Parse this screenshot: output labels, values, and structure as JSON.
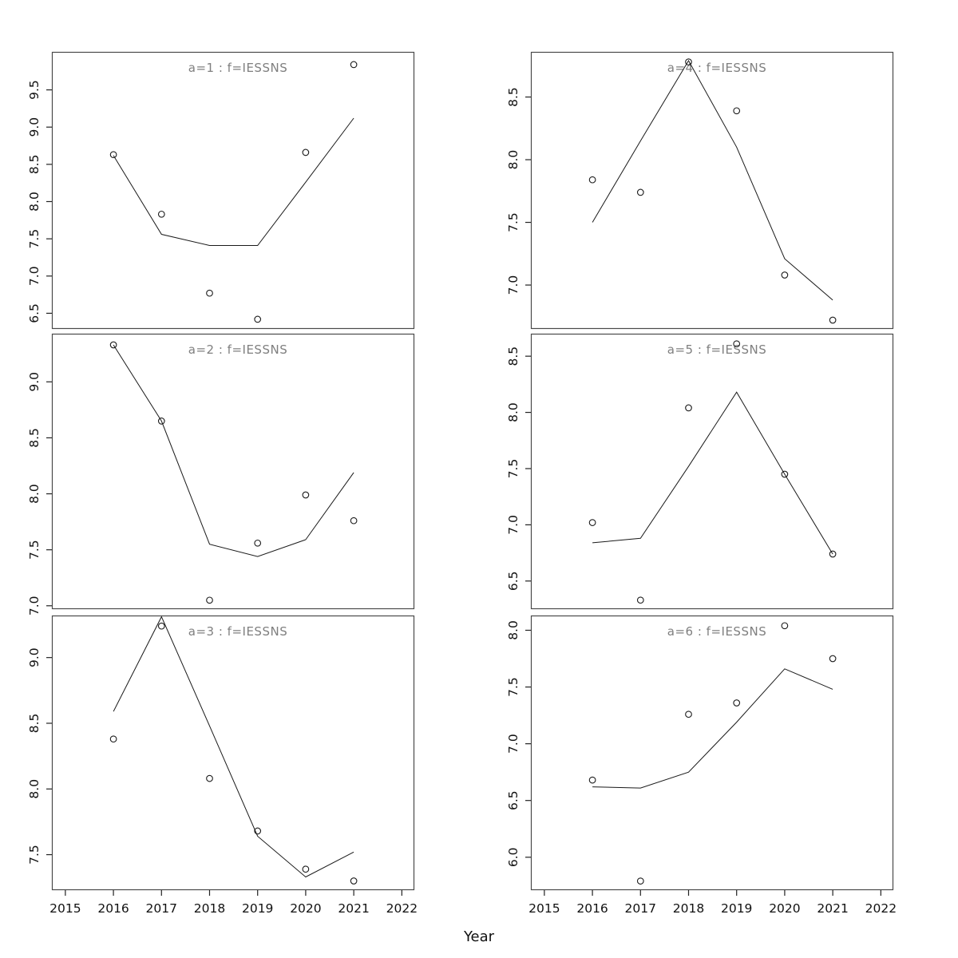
{
  "figure": {
    "background": "#ffffff",
    "xlabel": "Year"
  },
  "colors": {
    "panel_border": "#4a4a4a",
    "tick": "#222222",
    "tick_text": "#111111",
    "title_text": "#7f7f7f",
    "series_line": "#1a1a1a",
    "point_stroke": "#1a1a1a"
  },
  "chart_data": {
    "type": "scatter",
    "note": "6 panels, each: open-circle observations plus fitted line over years",
    "xlabel": "Year",
    "x": [
      2016,
      2017,
      2018,
      2019,
      2020,
      2021
    ],
    "xticks": [
      2015,
      2016,
      2017,
      2018,
      2019,
      2020,
      2021,
      2022
    ],
    "xlim": [
      2014.72,
      2022.26
    ],
    "grid": {
      "rows": 3,
      "cols": 2,
      "order": "column-major",
      "gridlines": false,
      "legend": "none"
    },
    "panels": [
      {
        "title": "a=1 : f=IESSNS",
        "points": [
          8.63,
          7.83,
          6.77,
          6.42,
          8.66,
          9.84
        ],
        "line": [
          8.62,
          7.56,
          7.41,
          7.41,
          8.26,
          9.12
        ],
        "yticks": [
          6.5,
          7.0,
          7.5,
          8.0,
          8.5,
          9.0,
          9.5
        ],
        "ylim": [
          6.29,
          10.01
        ]
      },
      {
        "title": "a=2 : f=IESSNS",
        "points": [
          9.33,
          8.65,
          7.05,
          7.56,
          7.99,
          7.76
        ],
        "line": [
          9.33,
          8.65,
          7.55,
          7.44,
          7.59,
          8.19
        ],
        "yticks": [
          7.0,
          7.5,
          8.0,
          8.5,
          9.0
        ],
        "ylim": [
          6.97,
          9.43
        ]
      },
      {
        "title": "a=3 : f=IESSNS",
        "points": [
          8.38,
          9.24,
          8.08,
          7.68,
          7.39,
          7.3
        ],
        "line": [
          8.59,
          9.31,
          8.48,
          7.64,
          7.33,
          7.52
        ],
        "yticks": [
          7.5,
          8.0,
          8.5,
          9.0
        ],
        "ylim": [
          7.23,
          9.32
        ]
      },
      {
        "title": "a=4 : f=IESSNS",
        "points": [
          7.84,
          7.74,
          8.78,
          8.39,
          7.08,
          6.72
        ],
        "line": [
          7.5,
          8.15,
          8.79,
          8.1,
          7.21,
          6.88
        ],
        "yticks": [
          7.0,
          7.5,
          8.0,
          8.5
        ],
        "ylim": [
          6.65,
          8.86
        ]
      },
      {
        "title": "a=5 : f=IESSNS",
        "points": [
          7.02,
          6.33,
          8.04,
          8.61,
          7.45,
          6.74
        ],
        "line": [
          6.84,
          6.88,
          7.52,
          8.18,
          7.45,
          6.74
        ],
        "yticks": [
          6.5,
          7.0,
          7.5,
          8.0,
          8.5
        ],
        "ylim": [
          6.25,
          8.7
        ]
      },
      {
        "title": "a=6 : f=IESSNS",
        "points": [
          6.68,
          5.79,
          7.26,
          7.36,
          8.04,
          7.75
        ],
        "line": [
          6.62,
          6.61,
          6.75,
          7.19,
          7.66,
          7.48
        ],
        "yticks": [
          6.0,
          6.5,
          7.0,
          7.5,
          8.0
        ],
        "ylim": [
          5.71,
          8.13
        ]
      }
    ]
  }
}
